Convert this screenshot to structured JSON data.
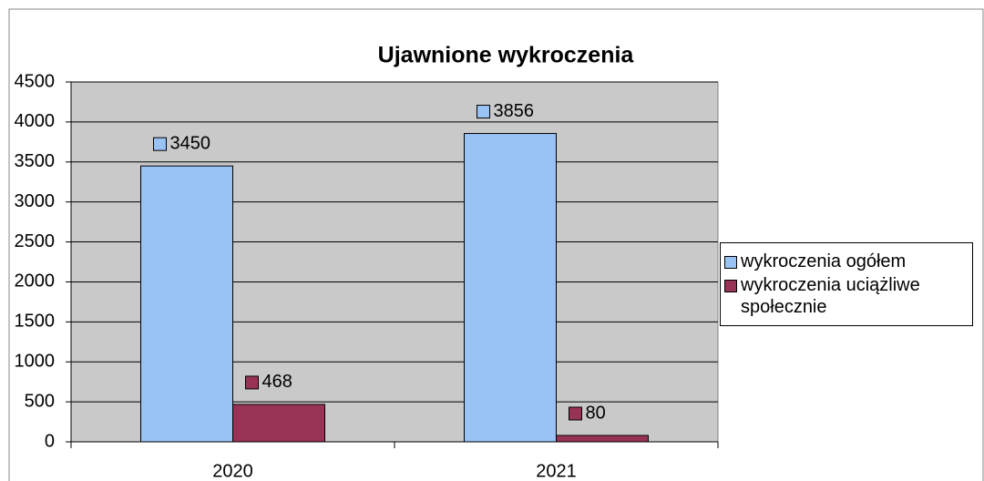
{
  "chart_data": {
    "type": "bar",
    "title": "Ujawnione wykroczenia",
    "categories": [
      "2020",
      "2021"
    ],
    "series": [
      {
        "name": "wykroczenia ogółem",
        "color": "#99c2f5",
        "values": [
          3450,
          3856
        ]
      },
      {
        "name": "wykroczenia uciążliwe społecznie",
        "color": "#993355",
        "values": [
          468,
          80
        ]
      }
    ],
    "ylim": [
      0,
      4500
    ],
    "yticks": [
      0,
      500,
      1000,
      1500,
      2000,
      2500,
      3000,
      3500,
      4000,
      4500
    ],
    "grid": true,
    "legend": "right"
  }
}
